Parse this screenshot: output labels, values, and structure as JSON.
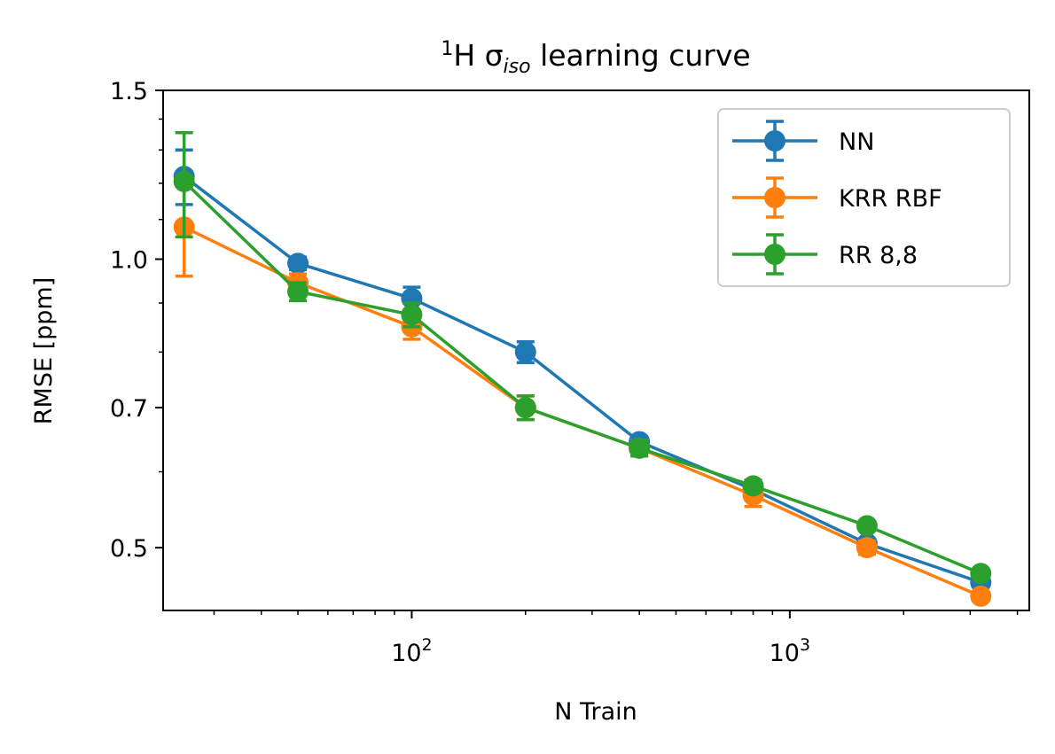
{
  "chart_data": {
    "type": "line",
    "title_prefix": "1",
    "title_main": "H σ",
    "title_sub": "iso",
    "title_suffix": " learning curve",
    "xlabel": "N Train",
    "ylabel": "RMSE [ppm]",
    "xscale": "log",
    "yscale": "log",
    "xlim": [
      22,
      4300
    ],
    "ylim": [
      0.43,
      1.5
    ],
    "x_major_ticks": [
      {
        "value": 100,
        "base": "10",
        "exp": "2"
      },
      {
        "value": 1000,
        "base": "10",
        "exp": "3"
      }
    ],
    "y_ticks": [
      {
        "value": 0.5,
        "label": "0.5"
      },
      {
        "value": 0.7,
        "label": "0.7"
      },
      {
        "value": 1.0,
        "label": "1.0"
      },
      {
        "value": 1.5,
        "label": "1.5"
      }
    ],
    "x": [
      25,
      50,
      100,
      200,
      400,
      800,
      1600,
      3200
    ],
    "series": [
      {
        "name": "NN",
        "color": "#1f77b4",
        "values": [
          1.22,
          0.99,
          0.91,
          0.8,
          0.645,
          0.575,
          0.505,
          0.46
        ],
        "errors": [
          0.08,
          0.015,
          0.025,
          0.02,
          0.008,
          0.008,
          0.005,
          0.005
        ]
      },
      {
        "name": "KRR RBF",
        "color": "#ff7f0e",
        "values": [
          1.08,
          0.945,
          0.85,
          0.7,
          0.635,
          0.567,
          0.5,
          0.445
        ],
        "errors": [
          0.12,
          0.02,
          0.025,
          0.02,
          0.012,
          0.015,
          0.008,
          0.005
        ]
      },
      {
        "name": "RR 8,8",
        "color": "#2ca02c",
        "values": [
          1.205,
          0.925,
          0.875,
          0.7,
          0.635,
          0.58,
          0.527,
          0.47
        ],
        "errors": [
          0.15,
          0.02,
          0.025,
          0.02,
          0.012,
          0.008,
          0.005,
          0.005
        ]
      }
    ],
    "legend_position": "top-right",
    "grid": false
  }
}
